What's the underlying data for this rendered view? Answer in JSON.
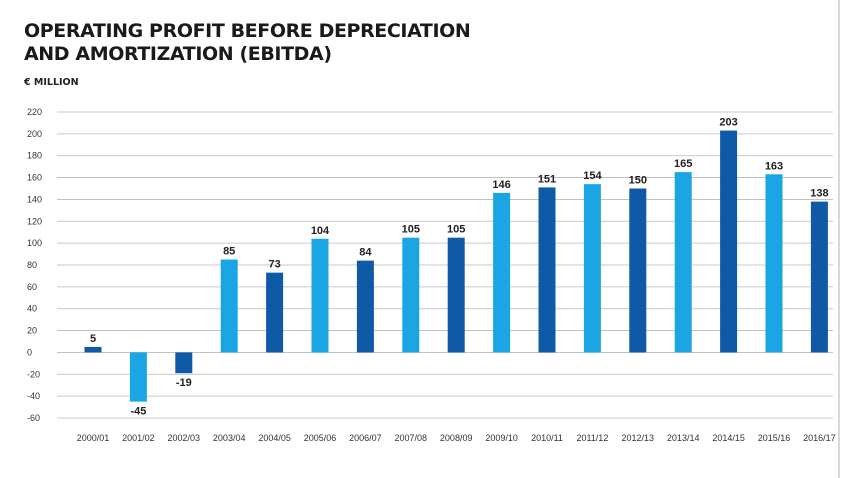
{
  "chart_data": {
    "type": "bar",
    "title_lines": [
      "OPERATING PROFIT BEFORE DEPRECIATION",
      "AND AMORTIZATION (EBITDA)"
    ],
    "ylabel": "€ MILLION",
    "xlabel": "",
    "ylim": [
      -60,
      220
    ],
    "ytick_step": 20,
    "grid": true,
    "categories": [
      "2000/01",
      "2001/02",
      "2002/03",
      "2003/04",
      "2004/05",
      "2005/06",
      "2006/07",
      "2007/08",
      "2008/09",
      "2009/10",
      "2010/11",
      "2011/12",
      "2012/13",
      "2013/14",
      "2014/15",
      "2015/16",
      "2016/17"
    ],
    "values": [
      5,
      -45,
      -19,
      85,
      73,
      104,
      84,
      105,
      105,
      146,
      151,
      154,
      150,
      165,
      203,
      163,
      138
    ],
    "color_scheme": [
      "dark",
      "light",
      "dark",
      "light",
      "dark",
      "light",
      "dark",
      "light",
      "dark",
      "light",
      "dark",
      "light",
      "dark",
      "light",
      "dark",
      "light",
      "dark"
    ],
    "colors": {
      "dark": "#0e5aa7",
      "light": "#1aa6e4",
      "grid": "#b8b8b8"
    }
  }
}
